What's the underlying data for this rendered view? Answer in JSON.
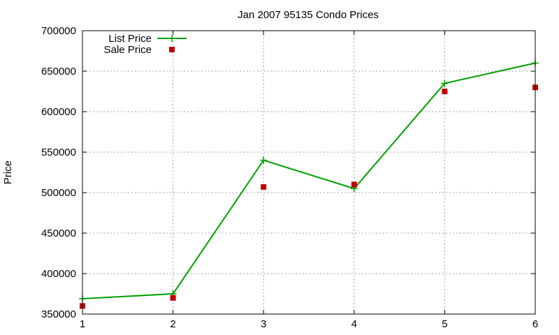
{
  "chart_data": {
    "type": "line",
    "title": "Jan 2007 95135 Condo Prices",
    "xlabel": "",
    "ylabel": "Price",
    "x": [
      1,
      2,
      3,
      4,
      5,
      6
    ],
    "xlim": [
      1,
      6
    ],
    "ylim": [
      350000,
      700000
    ],
    "xticks": [
      1,
      2,
      3,
      4,
      5,
      6
    ],
    "yticks": [
      350000,
      400000,
      450000,
      500000,
      550000,
      600000,
      650000,
      700000
    ],
    "grid": true,
    "legend_position": "top-left",
    "series": [
      {
        "name": "List Price",
        "style": "line-with-plus-markers",
        "color": "#00a000",
        "values": [
          369000,
          375000,
          540000,
          505000,
          635000,
          660000
        ]
      },
      {
        "name": "Sale Price",
        "style": "square-markers",
        "color": "#c00000",
        "values": [
          360000,
          370000,
          507000,
          510000,
          625000,
          630000
        ]
      }
    ]
  }
}
